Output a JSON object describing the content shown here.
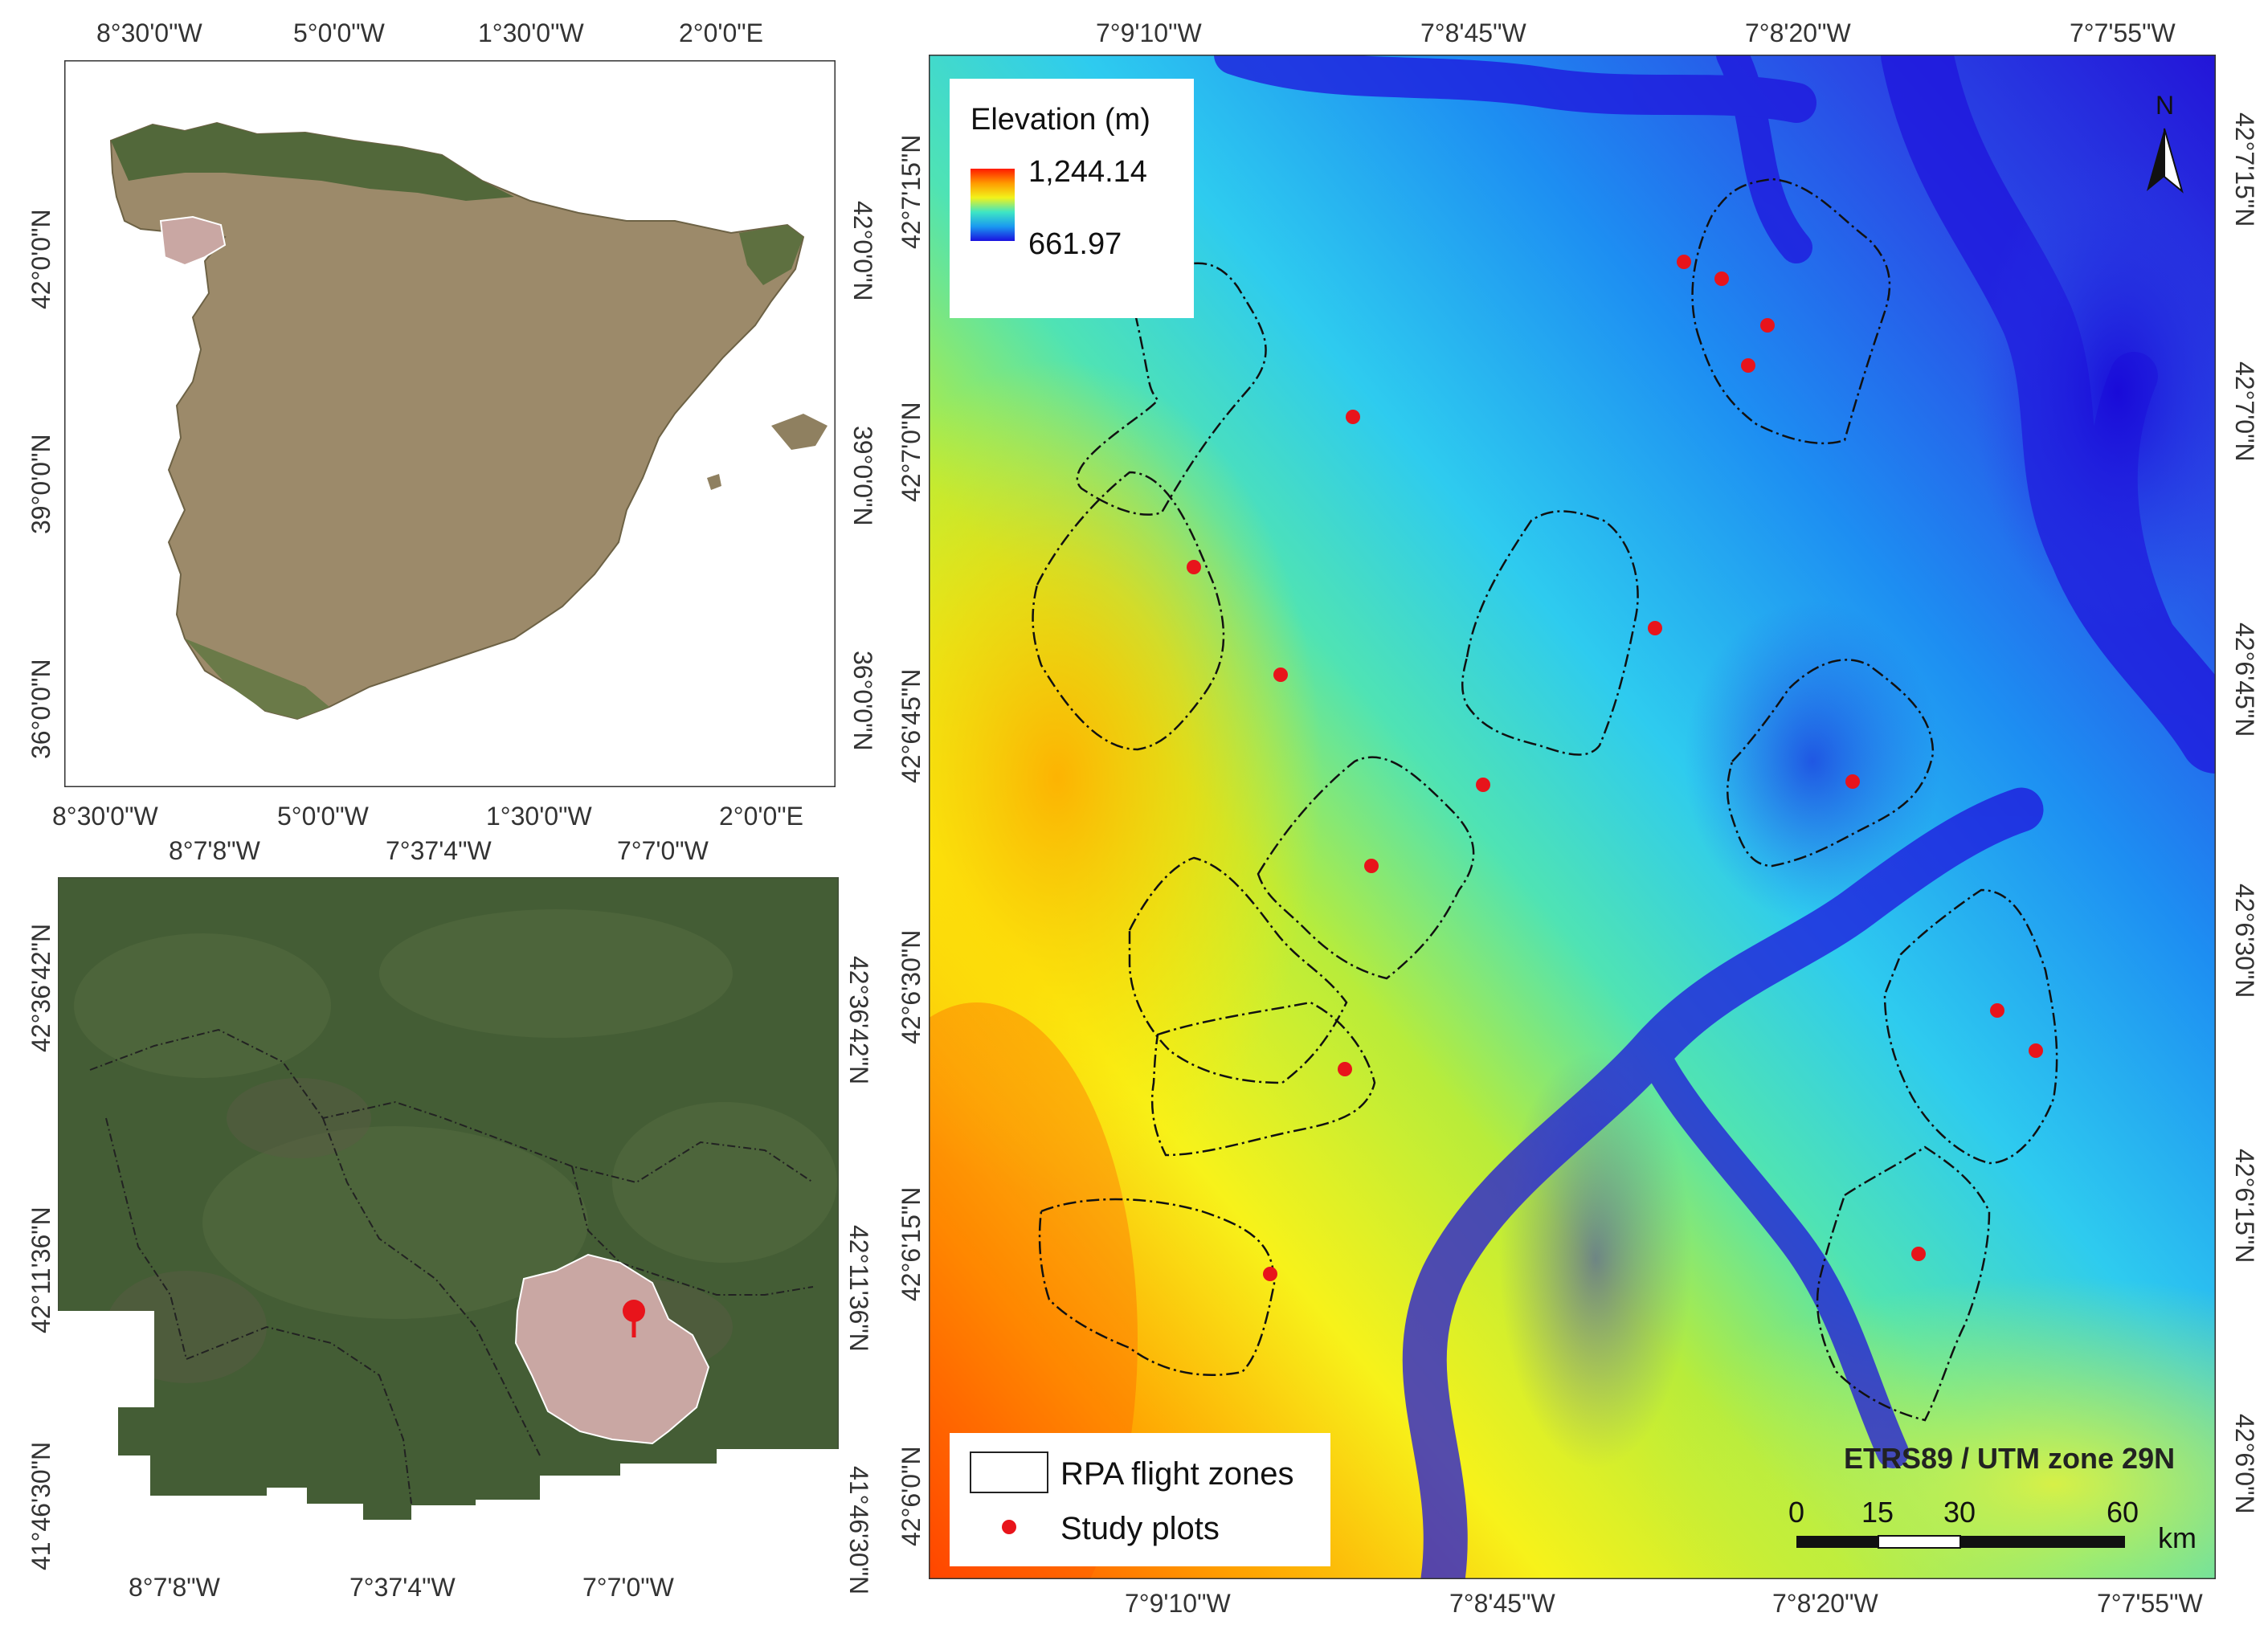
{
  "spain_map": {
    "top_ticks": [
      "8°30'0\"W",
      "5°0'0\"W",
      "1°30'0\"W",
      "2°0'0\"E"
    ],
    "bottom_ticks": [
      "8°30'0\"W",
      "5°0'0\"W",
      "1°30'0\"W",
      "2°0'0\"E"
    ],
    "left_ticks": [
      "42°0'0\"N",
      "39°0'0\"N",
      "36°0'0\"N"
    ],
    "right_ticks": [
      "42°0'0\"N",
      "39°0'0\"N",
      "36°0'0\"N"
    ]
  },
  "province_map": {
    "top_ticks": [
      "8°7'8\"W",
      "7°37'4\"W",
      "7°7'0\"W"
    ],
    "bottom_ticks": [
      "8°7'8\"W",
      "7°37'4\"W",
      "7°7'0\"W"
    ],
    "left_ticks": [
      "42°36'42\"N",
      "42°11'36\"N",
      "41°46'30\"N"
    ],
    "right_ticks": [
      "42°36'42\"N",
      "42°11'36\"N",
      "41°46'30\"N"
    ]
  },
  "elevation_map": {
    "top_ticks": [
      "7°9'10\"W",
      "7°8'45\"W",
      "7°8'20\"W",
      "7°7'55\"W"
    ],
    "bottom_ticks": [
      "7°9'10\"W",
      "7°8'45\"W",
      "7°8'20\"W",
      "7°7'55\"W"
    ],
    "left_ticks": [
      "42°7'15\"N",
      "42°7'0\"N",
      "42°6'45\"N",
      "42°6'30\"N",
      "42°6'15\"N",
      "42°6'0\"N"
    ],
    "right_ticks": [
      "42°7'15\"N",
      "42°7'0\"N",
      "42°6'45\"N",
      "42°6'30\"N",
      "42°6'15\"N",
      "42°6'0\"N"
    ],
    "elevation_legend": {
      "title": "Elevation (m)",
      "max": "1,244.14",
      "min": "661.97"
    },
    "north_arrow": {
      "label": "N",
      "icon": "north-arrow-icon"
    },
    "legend": {
      "flight_zones": "RPA flight zones",
      "study_plots": "Study plots"
    },
    "crs": "ETRS89 / UTM zone 29N",
    "scale_bar": {
      "labels": [
        "0",
        "15",
        "30",
        "60"
      ],
      "unit": "km"
    },
    "colors": {
      "study_plot": "#e8141b",
      "high": "#ff2a00",
      "low": "#1a10e0"
    }
  }
}
